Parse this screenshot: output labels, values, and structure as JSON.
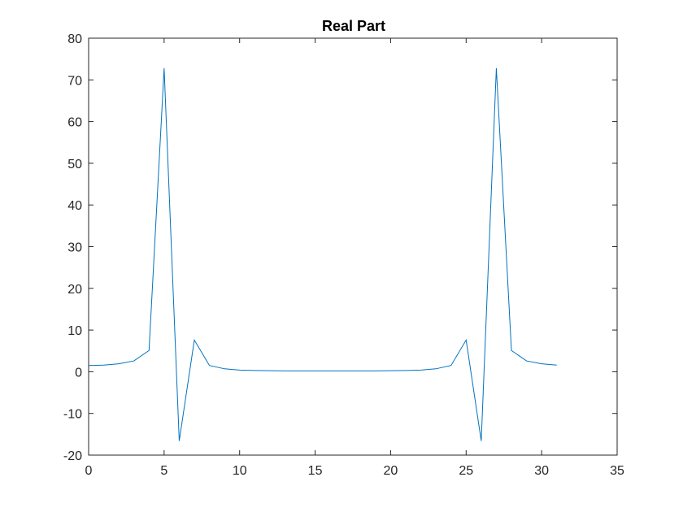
{
  "chart_data": {
    "type": "line",
    "title": "Real Part",
    "xlabel": "",
    "ylabel": "",
    "xlim": [
      0,
      35
    ],
    "ylim": [
      -20,
      80
    ],
    "xticks": [
      0,
      5,
      10,
      15,
      20,
      25,
      30,
      35
    ],
    "yticks": [
      -20,
      -10,
      0,
      10,
      20,
      30,
      40,
      50,
      60,
      70,
      80
    ],
    "grid": false,
    "legend": "none",
    "series": [
      {
        "color": "#0072BD",
        "x": [
          0,
          1,
          2,
          3,
          4,
          5,
          6,
          7,
          8,
          9,
          10,
          11,
          12,
          13,
          14,
          15,
          16,
          17,
          18,
          19,
          20,
          21,
          22,
          23,
          24,
          25,
          26,
          27,
          28,
          29,
          30,
          31
        ],
        "y": [
          1.5,
          1.6,
          1.9,
          2.6,
          5.1,
          72.8,
          -16.6,
          7.6,
          1.5,
          0.7,
          0.4,
          0.3,
          0.25,
          0.2,
          0.2,
          0.2,
          0.2,
          0.2,
          0.2,
          0.2,
          0.25,
          0.3,
          0.4,
          0.7,
          1.5,
          7.6,
          -16.6,
          72.8,
          5.1,
          2.6,
          1.9,
          1.6
        ]
      }
    ]
  }
}
